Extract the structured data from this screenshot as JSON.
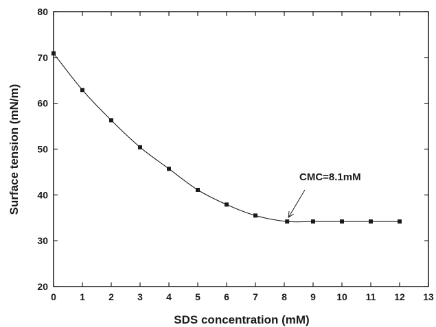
{
  "chart_data": {
    "type": "line",
    "title": "",
    "xlabel": "SDS concentration (mM)",
    "ylabel": "Surface tension (mN/m)",
    "xlim": [
      0,
      13
    ],
    "ylim": [
      20,
      80
    ],
    "xticks": [
      0,
      1,
      2,
      3,
      4,
      5,
      6,
      7,
      8,
      9,
      10,
      11,
      12,
      13
    ],
    "yticks": [
      20,
      30,
      40,
      50,
      60,
      70,
      80
    ],
    "grid": false,
    "legend": "none",
    "series": [
      {
        "x": [
          0,
          1,
          2,
          3,
          4,
          5,
          6,
          7,
          8.1,
          9,
          10,
          11,
          12
        ],
        "y": [
          70.9,
          62.9,
          56.3,
          50.4,
          45.7,
          41.1,
          37.9,
          35.5,
          34.2,
          34.2,
          34.2,
          34.2,
          34.2
        ],
        "color": "#1a1a1a",
        "marker": "square"
      }
    ],
    "annotation": {
      "text": "CMC=8.1mM",
      "x": 8.1,
      "y": 34.2
    }
  }
}
